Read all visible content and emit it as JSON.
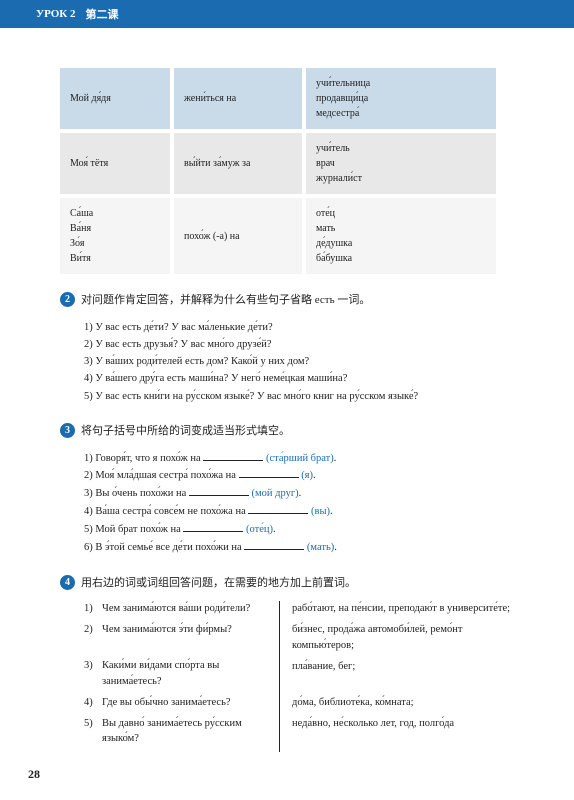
{
  "header": {
    "lesson_ru": "УРОК 2",
    "lesson_cn": "第二课"
  },
  "table": {
    "rows": [
      {
        "c1": "Мой дя́дя",
        "c2": "жени́ться на",
        "c3": "учи́тельница\nпродавщи́ца\nмедсестра́"
      },
      {
        "c1": "Моя́ тётя",
        "c2": "вы́йти за́муж за",
        "c3": "учи́тель\nврач\nжурнали́ст"
      },
      {
        "c1": "Са́ша\nВа́ня\nЗо́я\nВи́тя",
        "c2": "похо́ж (-а)  на",
        "c3": "оте́ц\nмать\nде́душка\nба́бушка"
      }
    ]
  },
  "sec2": {
    "num": "2",
    "title": "对问题作肯定回答，并解释为什么有些句子省略 есть 一词。",
    "items": [
      "1) У вас есть де́ти? У вас ма́ленькие де́ти?",
      "2) У вас есть друзья́? У вас мно́го друзе́й?",
      "3) У ва́ших роди́телей есть дом? Како́й у них дом?",
      "4) У ва́шего дру́га есть маши́на? У него́ неме́цкая маши́на?",
      "5) У вас есть кни́ги на ру́сском языке́? У вас мно́го книг на ру́сском языке́?"
    ]
  },
  "sec3": {
    "num": "3",
    "title": "将句子括号中所给的词变成适当形式填空。",
    "items": [
      {
        "pre": "1) Говоря́т, что я похо́ж на ",
        "hint": "(ста́рший брат)",
        "post": "."
      },
      {
        "pre": "2) Моя́ мла́дшая сестра́ похо́жа на ",
        "hint": "(я)",
        "post": "."
      },
      {
        "pre": "3) Вы о́чень похо́жи на ",
        "hint": "(мой друг)",
        "post": "."
      },
      {
        "pre": "4) Ва́ша сестра́ совсе́м не похо́жа на ",
        "hint": "(вы)",
        "post": "."
      },
      {
        "pre": "5) Мой брат похо́ж на ",
        "hint": "(оте́ц)",
        "post": "."
      },
      {
        "pre": "6) В э́той семье́ все де́ти похо́жи на ",
        "hint": "(мать)",
        "post": "."
      }
    ]
  },
  "sec4": {
    "num": "4",
    "title": "用右边的词或词组回答问题，在需要的地方加上前置词。",
    "rows": [
      {
        "n": "1)",
        "q": "Чем занима́ются ва́ши роди́тели?",
        "a": "рабо́тают, на пе́нсии, преподаю́т в университе́те;"
      },
      {
        "n": "2)",
        "q": "Чем занима́ются э́ти фи́рмы?",
        "a": "би́знес, прода́жа автомоби́лей, ремо́нт компью́теров;"
      },
      {
        "n": "3)",
        "q": "Каки́ми ви́дами спо́рта вы занима́етесь?",
        "a": "пла́вание, бег;"
      },
      {
        "n": "4)",
        "q": "Где вы обы́чно занима́етесь?",
        "a": "до́ма, библиоте́ка, ко́мната;"
      },
      {
        "n": "5)",
        "q": "Вы давно́ занима́етесь ру́сским языко́м?",
        "a": "неда́вно, не́сколько лет, год, полго́да"
      }
    ]
  },
  "page": "28"
}
